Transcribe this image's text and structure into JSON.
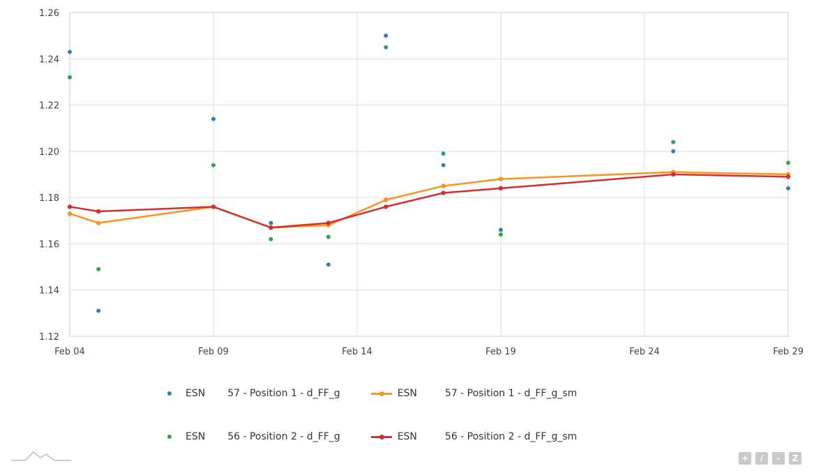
{
  "colors": {
    "esn57_raw": "#2f7ebf",
    "esn56_raw": "#2ba84a",
    "esn57_sm": "#f7931e",
    "esn56_sm": "#d62d2d",
    "grid": "#dddddd",
    "axis": "#cccccc",
    "tool": "#c9c9c9"
  },
  "icons": {
    "logo": "mountain-logo-icon",
    "tools": [
      "plus-icon",
      "slash-icon",
      "minus-icon",
      "z-icon"
    ]
  },
  "toolbar": {
    "labels": [
      "+",
      "/",
      "-",
      "Z"
    ]
  },
  "chart_data": {
    "type": "scatter",
    "title": "",
    "xlabel": "",
    "ylabel": "",
    "x_ticks": [
      "Feb 04",
      "Feb 09",
      "Feb 14",
      "Feb 19",
      "Feb 24",
      "Feb 29"
    ],
    "y_ticks": [
      "1.12",
      "1.14",
      "1.16",
      "1.18",
      "1.20",
      "1.22",
      "1.24",
      "1.26"
    ],
    "xlim": [
      "2020-02-04",
      "2020-02-29"
    ],
    "ylim": [
      1.12,
      1.26
    ],
    "grid": true,
    "legend_position": "bottom",
    "series": [
      {
        "name": "ESN 57 - Position 1 - d_FF_g",
        "label_parts": [
          "ESN",
          "57 - Position 1 - d_FF_g"
        ],
        "mode": "markers",
        "x": [
          "2020-02-04",
          "2020-02-05",
          "2020-02-09",
          "2020-02-11",
          "2020-02-13",
          "2020-02-15",
          "2020-02-17",
          "2020-02-19",
          "2020-02-25",
          "2020-02-29"
        ],
        "values": [
          1.243,
          1.131,
          1.214,
          1.169,
          1.151,
          1.25,
          1.194,
          1.166,
          1.2,
          1.184
        ]
      },
      {
        "name": "ESN 57 - Position 1 - d_FF_g_sm",
        "label_parts": [
          "ESN",
          "57 - Position 1 - d_FF_g_sm"
        ],
        "mode": "lines+markers",
        "x": [
          "2020-02-04",
          "2020-02-05",
          "2020-02-09",
          "2020-02-11",
          "2020-02-13",
          "2020-02-15",
          "2020-02-17",
          "2020-02-19",
          "2020-02-25",
          "2020-02-29"
        ],
        "values": [
          1.173,
          1.169,
          1.176,
          1.167,
          1.168,
          1.179,
          1.185,
          1.188,
          1.191,
          1.19
        ]
      },
      {
        "name": "ESN 56 - Position 2 - d_FF_g",
        "label_parts": [
          "ESN",
          "56 - Position 2 - d_FF_g"
        ],
        "mode": "markers",
        "x": [
          "2020-02-04",
          "2020-02-05",
          "2020-02-09",
          "2020-02-11",
          "2020-02-13",
          "2020-02-15",
          "2020-02-17",
          "2020-02-19",
          "2020-02-25",
          "2020-02-29"
        ],
        "values": [
          1.232,
          1.149,
          1.194,
          1.162,
          1.163,
          1.245,
          1.199,
          1.164,
          1.204,
          1.195
        ]
      },
      {
        "name": "ESN 56 - Position 2 - d_FF_g_sm",
        "label_parts": [
          "ESN",
          "56 - Position 2 - d_FF_g_sm"
        ],
        "mode": "lines+markers",
        "x": [
          "2020-02-04",
          "2020-02-05",
          "2020-02-09",
          "2020-02-11",
          "2020-02-13",
          "2020-02-15",
          "2020-02-17",
          "2020-02-19",
          "2020-02-25",
          "2020-02-29"
        ],
        "values": [
          1.176,
          1.174,
          1.176,
          1.167,
          1.169,
          1.176,
          1.182,
          1.184,
          1.19,
          1.189
        ]
      }
    ]
  }
}
